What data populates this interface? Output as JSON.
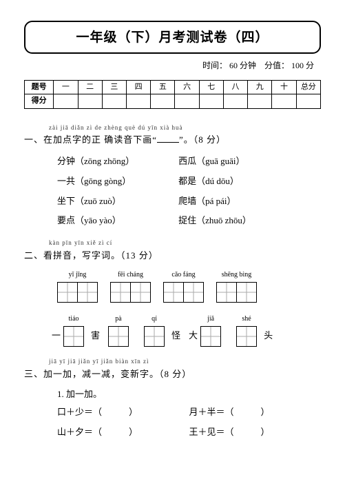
{
  "title": "一年级（下）月考测试卷（四）",
  "meta": {
    "time_label": "时间：",
    "time_value": "60 分钟",
    "score_label": "分值：",
    "score_value": "100 分"
  },
  "score_table": {
    "row1_label": "题号",
    "cols": [
      "一",
      "二",
      "三",
      "四",
      "五",
      "六",
      "七",
      "八",
      "九",
      "十",
      "总分"
    ],
    "row2_label": "得分"
  },
  "q1": {
    "hint": "zài jiā diǎn zì de zhèng què dú yīn xià huà",
    "heading": "一、在加点字的正 确读音下画“",
    "heading_tail": "”。（8 分）",
    "items_left": [
      "分钟（zōng  zhōng）",
      "一共（gōng  gòng）",
      "坐下（zuō  zuò）",
      "要点（yāo  yào）"
    ],
    "items_right": [
      "西瓜（guā  guāi）",
      "都是（dú  dōu）",
      "爬墙（pá  pái）",
      "捉住（zhuō  zhōu）"
    ]
  },
  "q2": {
    "hint": "kàn pīn yīn    xiě zì cí",
    "heading": "二、看拼音，写字词。（13 分）",
    "row1": [
      {
        "pinyin": "yǐ    jīng",
        "boxes": 2
      },
      {
        "pinyin": "fēi   cháng",
        "boxes": 2
      },
      {
        "pinyin": "cǎo   fáng",
        "boxes": 2
      },
      {
        "pinyin": "shēng  bìng",
        "boxes": 2
      }
    ],
    "row2": [
      {
        "lead": "一",
        "pinyin": "tiáo",
        "boxes": 1,
        "trail": ""
      },
      {
        "lead": "害",
        "pinyin": "pà",
        "boxes": 1,
        "trail": ""
      },
      {
        "lead": "",
        "pinyin": "qí",
        "boxes": 1,
        "trail": "怪"
      },
      {
        "lead": "大",
        "pinyin": "jiǎ",
        "boxes": 1,
        "trail": ""
      },
      {
        "lead": "",
        "pinyin": "shé",
        "boxes": 1,
        "trail": "头"
      }
    ]
  },
  "q3": {
    "hint": "jiā yī jiā    jiǎn yī jiǎn    biàn xīn zì",
    "heading": "三、加一加，减一减，变新字。（8 分）",
    "sub1": "1. 加一加。",
    "items": [
      {
        "left": "口＋少＝（　　　）",
        "right": "月＋半＝（　　　）"
      },
      {
        "left": "山＋夕＝（　　　）",
        "right": "王＋见＝（　　　）"
      }
    ]
  }
}
